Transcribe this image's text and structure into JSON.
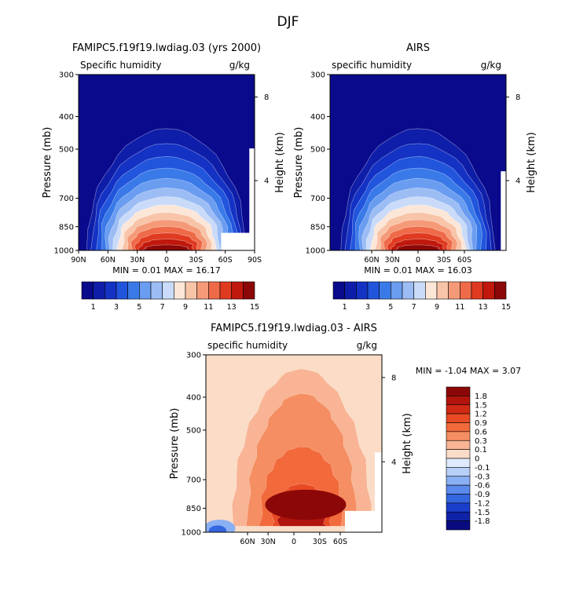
{
  "page_title": "DJF",
  "chart_data": [
    {
      "type": "contour",
      "title": "FAMIPC5.f19f19.lwdiag.03 (yrs 2000)",
      "subtitle_left": "Specific humidity",
      "subtitle_right": "g/kg",
      "ylabel": "Pressure (mb)",
      "ylabel_right": "Height (km)",
      "pressure_ticks": [
        "300",
        "400",
        "500",
        "700",
        "850",
        "1000"
      ],
      "height_ticks": [
        "8",
        "4"
      ],
      "lat_ticks": [
        "90N",
        "60N",
        "30N",
        "0",
        "30S",
        "60S",
        "90S"
      ],
      "stats": "MIN =   0.01   MAX =  16.17",
      "min": 0.01,
      "max": 16.17,
      "colorbar_labels": [
        "1",
        "3",
        "5",
        "7",
        "9",
        "11",
        "13",
        "15"
      ]
    },
    {
      "type": "contour",
      "title": "AIRS",
      "subtitle_left": "specific humidity",
      "subtitle_right": "g/kg",
      "ylabel": "Pressure (mb)",
      "ylabel_right": "Height (km)",
      "pressure_ticks": [
        "300",
        "400",
        "500",
        "700",
        "850",
        "1000"
      ],
      "height_ticks": [
        "8",
        "4"
      ],
      "lat_ticks": [
        "60N",
        "30N",
        "0",
        "30S",
        "60S"
      ],
      "stats": "MIN =   0.01   MAX =  16.03",
      "min": 0.01,
      "max": 16.03,
      "colorbar_labels": [
        "1",
        "3",
        "5",
        "7",
        "9",
        "11",
        "13",
        "15"
      ]
    },
    {
      "type": "contour",
      "title": "FAMIPC5.f19f19.lwdiag.03 - AIRS",
      "subtitle_left": "specific humidity",
      "subtitle_right": "g/kg",
      "ylabel": "Pressure (mb)",
      "ylabel_right": "Height (km)",
      "pressure_ticks": [
        "300",
        "400",
        "500",
        "700",
        "850",
        "1000"
      ],
      "height_ticks": [
        "8",
        "4"
      ],
      "lat_ticks": [
        "60N",
        "30N",
        "0",
        "30S",
        "60S"
      ],
      "stats": "MIN =  -1.04   MAX =   3.07",
      "min": -1.04,
      "max": 3.07,
      "colorbar_labels": [
        "1.8",
        "1.5",
        "1.2",
        "0.9",
        "0.6",
        "0.3",
        "0.1",
        "0",
        "-0.1",
        "-0.3",
        "-0.6",
        "-0.9",
        "-1.2",
        "-1.5",
        "-1.8"
      ]
    }
  ],
  "colors": {
    "main_scale": [
      "#0a0a8c",
      "#0f1ea8",
      "#1432c4",
      "#2155dc",
      "#3a7ae8",
      "#6a9cf0",
      "#9cbcf4",
      "#c9dbf8",
      "#fbe6d8",
      "#f8c4a8",
      "#f59a78",
      "#ee6a48",
      "#e03a20",
      "#c0180c",
      "#8c0808"
    ],
    "diff_scale": [
      "#8c0808",
      "#b0140c",
      "#d02a14",
      "#e84a24",
      "#f26a3c",
      "#f58e62",
      "#f8b494",
      "#fbdcc6",
      "#dfeafc",
      "#b8d0f8",
      "#8ab0f4",
      "#5a8aec",
      "#3466e0",
      "#1a3ecc",
      "#0f22a8",
      "#0a0a80"
    ]
  }
}
